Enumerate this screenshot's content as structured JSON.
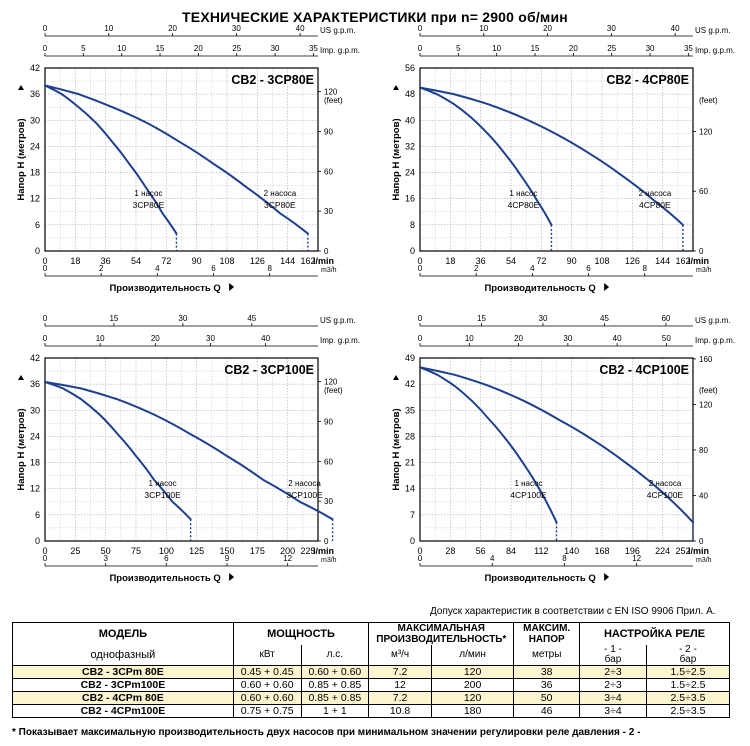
{
  "title": "ТЕХНИЧЕСКИЕ ХАРАКТЕРИСТИКИ при n= 2900 об/мин",
  "chart_data": [
    {
      "type": "line",
      "title": "CB2 - 3CP80E",
      "ylabel": "Напор H  (метров)",
      "xlabel": "Производительность Q",
      "xlim": [
        0,
        162
      ],
      "ylim": [
        0,
        42
      ],
      "x_ticks": [
        "0",
        "18",
        "36",
        "54",
        "72",
        "90",
        "108",
        "126",
        "144",
        "162"
      ],
      "x_unit": "l/min",
      "y_ticks": [
        "0",
        "6",
        "12",
        "18",
        "24",
        "30",
        "36",
        "42"
      ],
      "m3h_ticks": [
        "0",
        "2",
        "4",
        "6",
        "8",
        "10"
      ],
      "m3h_max": 9.72,
      "m3h_unit": "m3/h",
      "usgpm_ticks": [
        "0",
        "10",
        "20",
        "30",
        "40"
      ],
      "usgpm_max": 42.8,
      "usgpm_unit": "US g.p.m.",
      "impgpm_ticks": [
        "0",
        "5",
        "10",
        "15",
        "20",
        "25",
        "30",
        "35"
      ],
      "impgpm_max": 35.6,
      "impgpm_unit": "Imp. g.p.m.",
      "feet_ticks": [
        "0",
        "30",
        "60",
        "90",
        "120"
      ],
      "feet_max": 137.8,
      "feet_unit": "(feet)",
      "series": [
        {
          "name": "1 насос",
          "model": "3CP80E",
          "x": [
            0,
            10,
            20,
            30,
            40,
            50,
            60,
            70,
            78
          ],
          "y": [
            38,
            36,
            33,
            29.5,
            25,
            20,
            14.5,
            8.5,
            4
          ]
        },
        {
          "name": "2 насоса",
          "model": "3CP80E",
          "x": [
            0,
            20,
            40,
            60,
            80,
            100,
            120,
            140,
            156
          ],
          "y": [
            38,
            36,
            33,
            29.5,
            25,
            20,
            14.5,
            8.5,
            4
          ]
        }
      ]
    },
    {
      "type": "line",
      "title": "CB2 - 4CP80E",
      "ylabel": "Напор H  (метров)",
      "xlabel": "Производительность Q",
      "xlim": [
        0,
        162
      ],
      "ylim": [
        0,
        56
      ],
      "x_ticks": [
        "0",
        "18",
        "36",
        "54",
        "72",
        "90",
        "108",
        "126",
        "144",
        "162"
      ],
      "x_unit": "l/min",
      "y_ticks": [
        "0",
        "8",
        "16",
        "24",
        "32",
        "40",
        "48",
        "56"
      ],
      "m3h_ticks": [
        "0",
        "2",
        "4",
        "6",
        "8",
        "10"
      ],
      "m3h_max": 9.72,
      "m3h_unit": "m3/h",
      "usgpm_ticks": [
        "0",
        "10",
        "20",
        "30",
        "40"
      ],
      "usgpm_max": 42.8,
      "usgpm_unit": "US g.p.m.",
      "impgpm_ticks": [
        "0",
        "5",
        "10",
        "15",
        "20",
        "25",
        "30",
        "35"
      ],
      "impgpm_max": 35.6,
      "impgpm_unit": "Imp. g.p.m.",
      "feet_ticks": [
        "0",
        "60",
        "120"
      ],
      "feet_max": 183.7,
      "feet_unit": "(feet)",
      "series": [
        {
          "name": "1 насос",
          "model": "4CP80E",
          "x": [
            0,
            10,
            20,
            30,
            40,
            50,
            60,
            70,
            78
          ],
          "y": [
            50,
            48,
            45,
            41,
            36,
            30,
            23,
            15,
            8
          ]
        },
        {
          "name": "2 насоса",
          "model": "4CP80E",
          "x": [
            0,
            20,
            40,
            60,
            80,
            100,
            120,
            140,
            156
          ],
          "y": [
            50,
            48,
            45,
            41,
            36,
            30,
            23,
            15,
            8
          ]
        }
      ]
    },
    {
      "type": "line",
      "title": "CB2 - 3CP100E",
      "ylabel": "Напор H  (метров)",
      "xlabel": "Производительность Q",
      "xlim": [
        0,
        225
      ],
      "ylim": [
        0,
        42
      ],
      "x_ticks": [
        "0",
        "25",
        "50",
        "75",
        "100",
        "125",
        "150",
        "175",
        "200",
        "225"
      ],
      "x_unit": "l/min",
      "y_ticks": [
        "0",
        "6",
        "12",
        "18",
        "24",
        "30",
        "36",
        "42"
      ],
      "m3h_ticks": [
        "0",
        "3",
        "6",
        "9",
        "12"
      ],
      "m3h_max": 13.5,
      "m3h_unit": "m3/h",
      "usgpm_ticks": [
        "0",
        "15",
        "30",
        "45"
      ],
      "usgpm_max": 59.4,
      "usgpm_unit": "US g.p.m.",
      "impgpm_ticks": [
        "0",
        "10",
        "20",
        "30",
        "40"
      ],
      "impgpm_max": 49.5,
      "impgpm_unit": "Imp. g.p.m.",
      "feet_ticks": [
        "0",
        "30",
        "60",
        "90",
        "120"
      ],
      "feet_max": 137.8,
      "feet_unit": "(feet)",
      "series": [
        {
          "name": "1 насос",
          "model": "3CP100E",
          "x": [
            0,
            15,
            30,
            45,
            60,
            75,
            90,
            105,
            120
          ],
          "y": [
            36.5,
            35,
            32.5,
            29,
            24.5,
            19.5,
            14,
            9,
            5
          ]
        },
        {
          "name": "2 насоса",
          "model": "3CP100E",
          "x": [
            0,
            30,
            60,
            90,
            120,
            150,
            180,
            210,
            237
          ],
          "y": [
            36.5,
            35,
            32.5,
            29,
            24.5,
            19.5,
            14,
            9,
            5
          ]
        }
      ]
    },
    {
      "type": "line",
      "title": "CB2 - 4CP100E",
      "ylabel": "Напор H  (метров)",
      "xlabel": "Производительность Q",
      "xlim": [
        0,
        252
      ],
      "ylim": [
        0,
        49
      ],
      "x_ticks": [
        "0",
        "28",
        "56",
        "84",
        "112",
        "140",
        "168",
        "196",
        "224",
        "252"
      ],
      "x_unit": "l/min",
      "y_ticks": [
        "0",
        "7",
        "14",
        "21",
        "28",
        "35",
        "42",
        "49"
      ],
      "m3h_ticks": [
        "0",
        "4",
        "8",
        "12",
        "16"
      ],
      "m3h_max": 15.12,
      "m3h_unit": "m3/h",
      "usgpm_ticks": [
        "0",
        "15",
        "30",
        "45",
        "60"
      ],
      "usgpm_max": 66.6,
      "usgpm_unit": "US g.p.m.",
      "impgpm_ticks": [
        "0",
        "10",
        "20",
        "30",
        "40",
        "50"
      ],
      "impgpm_max": 55.4,
      "impgpm_unit": "Imp. g.p.m.",
      "feet_ticks": [
        "0",
        "40",
        "80",
        "120",
        "160"
      ],
      "feet_max": 160.8,
      "feet_unit": "(feet)",
      "series": [
        {
          "name": "1 насос",
          "model": "4CP100E",
          "x": [
            0,
            16,
            32,
            48,
            64,
            80,
            96,
            112,
            126
          ],
          "y": [
            46.5,
            44.5,
            41.5,
            37.5,
            32.5,
            27,
            20.5,
            13,
            5
          ]
        },
        {
          "name": "2 насоса",
          "model": "4CP100E",
          "x": [
            0,
            32,
            64,
            96,
            128,
            160,
            192,
            224,
            252
          ],
          "y": [
            46.5,
            44.5,
            41.5,
            37.5,
            32.5,
            27,
            20.5,
            13,
            5
          ]
        }
      ]
    }
  ],
  "note": "Допуск характеристик в соответствии с EN ISO 9906 Прил.  А.",
  "table": {
    "h_model": "МОДЕЛЬ",
    "h_power": "МОЩНОСТЬ",
    "h_flow": "МАКСИМАЛЬНАЯ ПРОИЗВОДИТЕЛЬНОСТЬ*",
    "h_head": "МАКСИМ. НАПОР",
    "h_relay": "НАСТРОЙКА РЕЛЕ",
    "sub_phase": "однофазный",
    "sub_kw": "кВт",
    "sub_hp": "л.с.",
    "sub_m3h": "м³/ч",
    "sub_lmin": "л/мин",
    "sub_m": "метры",
    "sub_r1": "- 1 -",
    "sub_r2": "- 2 -",
    "sub_bar1": "бар",
    "sub_bar2": "бар",
    "rows": [
      {
        "model": "CB2 - 3CPm 80E",
        "kw": "0.45 + 0.45",
        "hp": "0.60 + 0.60",
        "m3h": "7.2",
        "lmin": "120",
        "head": "38",
        "r1": "2÷3",
        "r2": "1.5÷2.5"
      },
      {
        "model": "CB2 - 3CPm100E",
        "kw": "0.60 + 0.60",
        "hp": "0.85 + 0.85",
        "m3h": "12",
        "lmin": "200",
        "head": "36",
        "r1": "2÷3",
        "r2": "1.5÷2.5"
      },
      {
        "model": "CB2 - 4CPm 80E",
        "kw": "0.60 + 0.60",
        "hp": "0.85 + 0.85",
        "m3h": "7.2",
        "lmin": "120",
        "head": "50",
        "r1": "3÷4",
        "r2": "2.5÷3.5"
      },
      {
        "model": "CB2 - 4CPm100E",
        "kw": "0.75 + 0.75",
        "hp": "1 + 1",
        "m3h": "10.8",
        "lmin": "180",
        "head": "46",
        "r1": "3÷4",
        "r2": "2.5÷3.5"
      }
    ]
  },
  "footnote": "* Показывает максимальную производительность двух насосов при минимальном значении регулировки реле давления - 2 -",
  "colors": {
    "curve": "#1c3f8f",
    "grid": "#9a9a9a",
    "row_highlight": "#fdf5cf"
  }
}
